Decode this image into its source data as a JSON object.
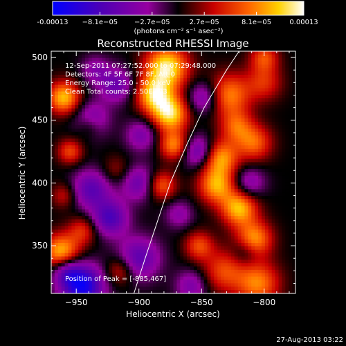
{
  "colorbar": {
    "ticks": [
      "-0.00013",
      "−8.1e−05",
      "−2.7e−05",
      "2.7e−05",
      "8.1e−05",
      "0.00013"
    ],
    "tick_values": [
      -0.00013,
      -8.1e-05,
      -2.7e-05,
      2.7e-05,
      8.1e-05,
      0.00013
    ],
    "unit_label": "(photons cm⁻² s⁻¹ asec⁻²)",
    "colors": [
      "#0000ff",
      "#5000b4",
      "#9600a0",
      "#000000",
      "#c80000",
      "#ff6400",
      "#ffd200",
      "#ffffff"
    ]
  },
  "chart_data": {
    "type": "heatmap",
    "title": "Reconstructed RHESSI Image",
    "xlabel": "Heliocentric X (arcsec)",
    "ylabel": "Heliocentric Y (arcsec)",
    "xlim": [
      -970,
      -775
    ],
    "ylim": [
      312,
      505
    ],
    "x_ticks": [
      -950,
      -900,
      -850,
      -800
    ],
    "y_ticks": [
      350,
      400,
      450,
      500
    ],
    "x_tick_labels": [
      "−950",
      "−900",
      "−850",
      "−800"
    ],
    "y_tick_labels": [
      "350",
      "400",
      "450",
      "500"
    ],
    "info_lines": [
      "12-Sep-2011 07:27:52.000 to 07:29:48.000",
      "Detectors: 4F 5F 6F 7F 8F, Att 0",
      "Energy Range: 25.0 - 50.0 keV",
      "Clean    Total counts: 2.50E+03"
    ],
    "peak_label": "Position of Peak = [-885,467]",
    "peak": [
      -885,
      467
    ],
    "limb_curve": [
      [
        -904,
        312
      ],
      [
        -895,
        340
      ],
      [
        -885,
        370
      ],
      [
        -875,
        400
      ],
      [
        -862,
        430
      ],
      [
        -848,
        460
      ],
      [
        -830,
        490
      ],
      [
        -820,
        505
      ]
    ],
    "sources": [
      [
        -878,
        492,
        0.00012,
        12
      ],
      [
        -875,
        455,
        0.00011,
        10
      ],
      [
        -888,
        470,
        0.0001,
        10
      ],
      [
        -872,
        430,
        8e-05,
        8
      ],
      [
        -828,
        470,
        8e-05,
        12
      ],
      [
        -822,
        445,
        6e-05,
        9
      ],
      [
        -835,
        420,
        9e-05,
        10
      ],
      [
        -808,
        432,
        7e-05,
        10
      ],
      [
        -838,
        398,
        9e-05,
        10
      ],
      [
        -820,
        380,
        0.0001,
        10
      ],
      [
        -808,
        355,
        9e-05,
        10
      ],
      [
        -805,
        320,
        8e-05,
        12
      ],
      [
        -832,
        330,
        6e-05,
        12
      ],
      [
        -852,
        350,
        6e-05,
        8
      ],
      [
        -882,
        398,
        7e-05,
        8
      ],
      [
        -960,
        468,
        0.0001,
        9
      ],
      [
        -955,
        425,
        6e-05,
        7
      ],
      [
        -962,
        345,
        0.0001,
        10
      ],
      [
        -945,
        362,
        5e-05,
        8
      ],
      [
        -960,
        390,
        4e-05,
        7
      ],
      [
        -940,
        445,
        4e-05,
        7
      ],
      [
        -915,
        330,
        5e-05,
        8
      ],
      [
        -918,
        410,
        3e-05,
        8
      ],
      [
        -800,
        480,
        5e-05,
        10
      ],
      [
        -800,
        500,
        6e-05,
        8
      ],
      [
        -938,
        395,
        -7e-05,
        11
      ],
      [
        -923,
        372,
        -8e-05,
        10
      ],
      [
        -938,
        450,
        -6e-05,
        10
      ],
      [
        -918,
        478,
        -6e-05,
        10
      ],
      [
        -898,
        438,
        -5e-05,
        9
      ],
      [
        -900,
        400,
        -6e-05,
        10
      ],
      [
        -900,
        340,
        -7e-05,
        12
      ],
      [
        -945,
        318,
        -0.00012,
        12
      ],
      [
        -958,
        330,
        -6e-05,
        8
      ],
      [
        -852,
        425,
        -7e-05,
        9
      ],
      [
        -848,
        468,
        -6e-05,
        9
      ],
      [
        -812,
        400,
        -5e-05,
        9
      ],
      [
        -858,
        318,
        -5e-05,
        9
      ],
      [
        -868,
        375,
        -4e-05,
        8
      ],
      [
        -935,
        490,
        -4e-05,
        8
      ],
      [
        -815,
        345,
        -4e-05,
        8
      ]
    ]
  },
  "footer": {
    "timestamp": "27-Aug-2013 03:22"
  }
}
